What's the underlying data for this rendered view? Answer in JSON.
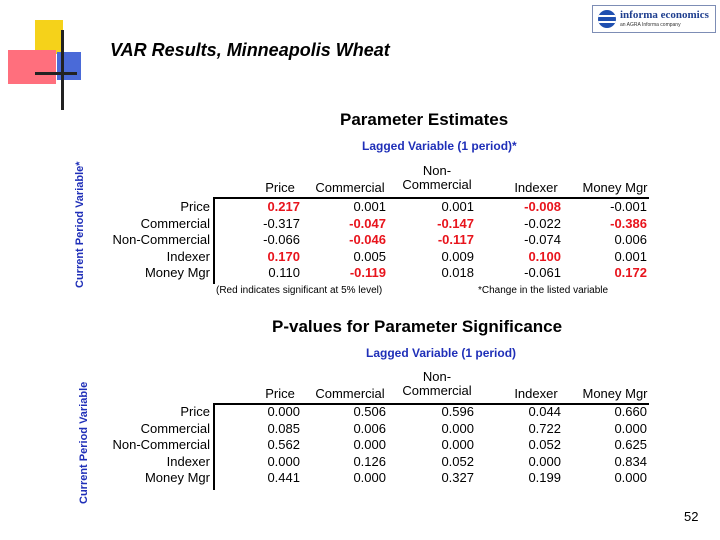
{
  "slide": {
    "title": "VAR Results, Minneapolis Wheat",
    "page_number": "52",
    "brand": {
      "name": "informa economics",
      "tagline": "an AGRA Informa company"
    }
  },
  "estimates": {
    "title": "Parameter Estimates",
    "lag_label": "Lagged Variable (1 period)*",
    "side_label": "Current Period Variable*",
    "columns": [
      "Price",
      "Commercial",
      "Non-\nCommercial",
      "Indexer",
      "Money Mgr"
    ],
    "rows": [
      {
        "label": "Price",
        "cells": [
          {
            "v": "0.217",
            "sig": true
          },
          {
            "v": "0.001",
            "sig": false
          },
          {
            "v": "0.001",
            "sig": false
          },
          {
            "v": "-0.008",
            "sig": true
          },
          {
            "v": "-0.001",
            "sig": false
          }
        ]
      },
      {
        "label": "Commercial",
        "cells": [
          {
            "v": "-0.317",
            "sig": false
          },
          {
            "v": "-0.047",
            "sig": true
          },
          {
            "v": "-0.147",
            "sig": true
          },
          {
            "v": "-0.022",
            "sig": false
          },
          {
            "v": "-0.386",
            "sig": true
          }
        ]
      },
      {
        "label": "Non-Commercial",
        "cells": [
          {
            "v": "-0.066",
            "sig": false
          },
          {
            "v": "-0.046",
            "sig": true
          },
          {
            "v": "-0.117",
            "sig": true
          },
          {
            "v": "-0.074",
            "sig": false
          },
          {
            "v": "0.006",
            "sig": false
          }
        ]
      },
      {
        "label": "Indexer",
        "cells": [
          {
            "v": "0.170",
            "sig": true
          },
          {
            "v": "0.005",
            "sig": false
          },
          {
            "v": "0.009",
            "sig": false
          },
          {
            "v": "0.100",
            "sig": true
          },
          {
            "v": "0.001",
            "sig": false
          }
        ]
      },
      {
        "label": "Money Mgr",
        "cells": [
          {
            "v": "0.110",
            "sig": false
          },
          {
            "v": "-0.119",
            "sig": true
          },
          {
            "v": "0.018",
            "sig": false
          },
          {
            "v": "-0.061",
            "sig": false
          },
          {
            "v": "0.172",
            "sig": true
          }
        ]
      }
    ],
    "note_left": "(Red indicates significant at 5% level)",
    "note_right": "*Change in the listed variable"
  },
  "pvalues": {
    "title": "P-values for Parameter Significance",
    "lag_label": "Lagged Variable (1 period)",
    "side_label": "Current Period Variable",
    "columns": [
      "Price",
      "Commercial",
      "Non-\nCommercial",
      "Indexer",
      "Money Mgr"
    ],
    "rows": [
      {
        "label": "Price",
        "cells": [
          {
            "v": "0.000"
          },
          {
            "v": "0.506"
          },
          {
            "v": "0.596"
          },
          {
            "v": "0.044"
          },
          {
            "v": "0.660"
          }
        ]
      },
      {
        "label": "Commercial",
        "cells": [
          {
            "v": "0.085"
          },
          {
            "v": "0.006"
          },
          {
            "v": "0.000"
          },
          {
            "v": "0.722"
          },
          {
            "v": "0.000"
          }
        ]
      },
      {
        "label": "Non-Commercial",
        "cells": [
          {
            "v": "0.562"
          },
          {
            "v": "0.000"
          },
          {
            "v": "0.000"
          },
          {
            "v": "0.052"
          },
          {
            "v": "0.625"
          }
        ]
      },
      {
        "label": "Indexer",
        "cells": [
          {
            "v": "0.000"
          },
          {
            "v": "0.126"
          },
          {
            "v": "0.052"
          },
          {
            "v": "0.000"
          },
          {
            "v": "0.834"
          }
        ]
      },
      {
        "label": "Money Mgr",
        "cells": [
          {
            "v": "0.441"
          },
          {
            "v": "0.000"
          },
          {
            "v": "0.327"
          },
          {
            "v": "0.199"
          },
          {
            "v": "0.000"
          }
        ]
      }
    ]
  },
  "colors": {
    "significant": "#e8141c",
    "label_blue": "#1f2fb8"
  }
}
